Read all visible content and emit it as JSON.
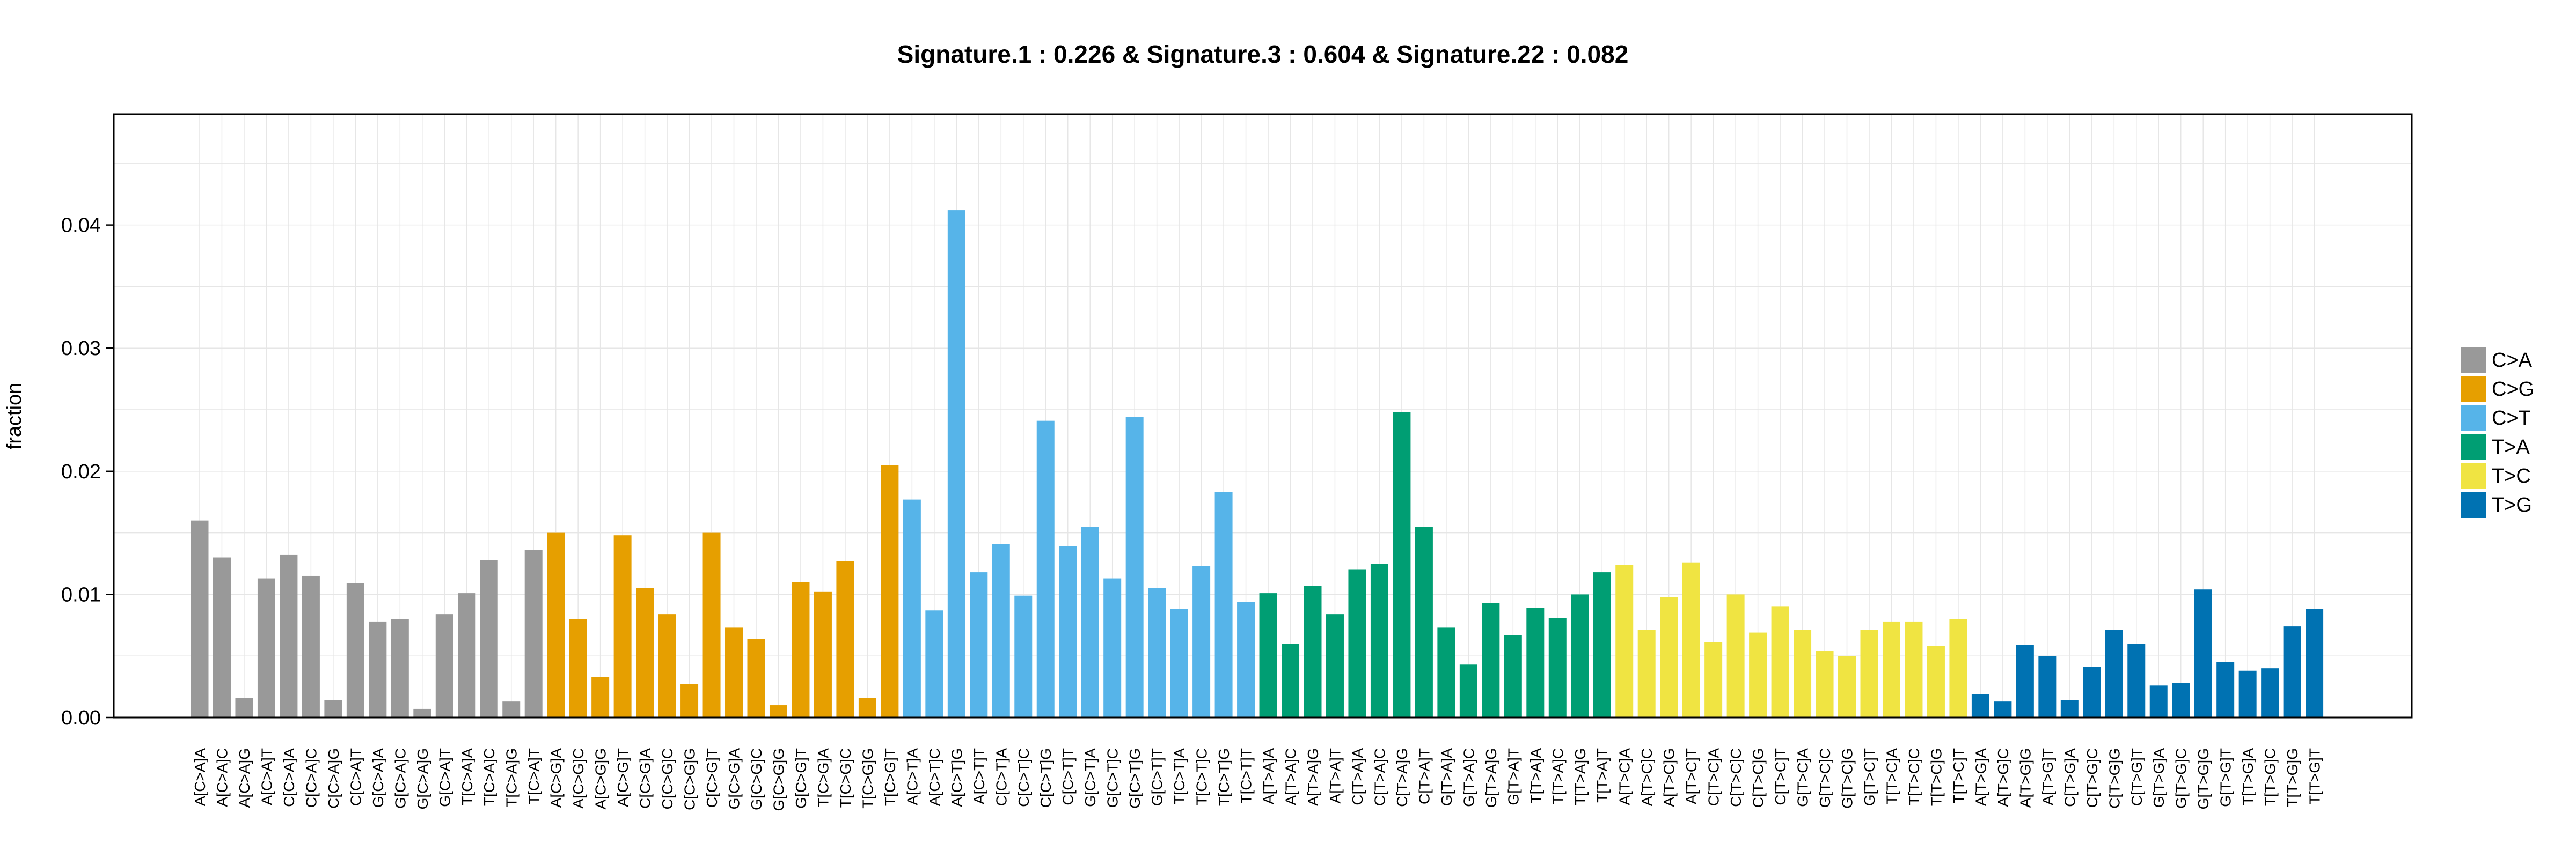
{
  "chart_data": {
    "type": "bar",
    "title": "Signature.1 : 0.226 & Signature.3 : 0.604 & Signature.22 : 0.082",
    "xlabel": "",
    "ylabel": "fraction",
    "ylim": [
      0,
      0.049
    ],
    "yticks": [
      "0.00",
      "0.01",
      "0.02",
      "0.03",
      "0.04"
    ],
    "grid": true,
    "legend_position": "right",
    "groups": [
      {
        "name": "C>A",
        "color": "#999999",
        "categories": [
          "A[C>A]A",
          "A[C>A]C",
          "A[C>A]G",
          "A[C>A]T",
          "C[C>A]A",
          "C[C>A]C",
          "C[C>A]G",
          "C[C>A]T",
          "G[C>A]A",
          "G[C>A]C",
          "G[C>A]G",
          "G[C>A]T",
          "T[C>A]A",
          "T[C>A]C",
          "T[C>A]G",
          "T[C>A]T"
        ],
        "values": [
          0.016,
          0.013,
          0.0016,
          0.0113,
          0.0132,
          0.0115,
          0.0014,
          0.0109,
          0.0078,
          0.008,
          0.0007,
          0.0084,
          0.0101,
          0.0128,
          0.0013,
          0.0136
        ]
      },
      {
        "name": "C>G",
        "color": "#E69F00",
        "categories": [
          "A[C>G]A",
          "A[C>G]C",
          "A[C>G]G",
          "A[C>G]T",
          "C[C>G]A",
          "C[C>G]C",
          "C[C>G]G",
          "C[C>G]T",
          "G[C>G]A",
          "G[C>G]C",
          "G[C>G]G",
          "G[C>G]T",
          "T[C>G]A",
          "T[C>G]C",
          "T[C>G]G",
          "T[C>G]T"
        ],
        "values": [
          0.015,
          0.008,
          0.0033,
          0.0148,
          0.0105,
          0.0084,
          0.0027,
          0.015,
          0.0073,
          0.0064,
          0.001,
          0.011,
          0.0102,
          0.0127,
          0.0016,
          0.0205
        ]
      },
      {
        "name": "C>T",
        "color": "#56B4E9",
        "categories": [
          "A[C>T]A",
          "A[C>T]C",
          "A[C>T]G",
          "A[C>T]T",
          "C[C>T]A",
          "C[C>T]C",
          "C[C>T]G",
          "C[C>T]T",
          "G[C>T]A",
          "G[C>T]C",
          "G[C>T]G",
          "G[C>T]T",
          "T[C>T]A",
          "T[C>T]C",
          "T[C>T]G",
          "T[C>T]T"
        ],
        "values": [
          0.0177,
          0.0087,
          0.0412,
          0.0118,
          0.0141,
          0.0099,
          0.0241,
          0.0139,
          0.0155,
          0.0113,
          0.0244,
          0.0105,
          0.0088,
          0.0123,
          0.0183,
          0.0094
        ]
      },
      {
        "name": "T>A",
        "color": "#009E73",
        "categories": [
          "A[T>A]A",
          "A[T>A]C",
          "A[T>A]G",
          "A[T>A]T",
          "C[T>A]A",
          "C[T>A]C",
          "C[T>A]G",
          "C[T>A]T",
          "G[T>A]A",
          "G[T>A]C",
          "G[T>A]G",
          "G[T>A]T",
          "T[T>A]A",
          "T[T>A]C",
          "T[T>A]G",
          "T[T>A]T"
        ],
        "values": [
          0.0101,
          0.006,
          0.0107,
          0.0084,
          0.012,
          0.0125,
          0.0248,
          0.0155,
          0.0073,
          0.0043,
          0.0093,
          0.0067,
          0.0089,
          0.0081,
          0.01,
          0.0118
        ]
      },
      {
        "name": "T>C",
        "color": "#F0E442",
        "categories": [
          "A[T>C]A",
          "A[T>C]C",
          "A[T>C]G",
          "A[T>C]T",
          "C[T>C]A",
          "C[T>C]C",
          "C[T>C]G",
          "C[T>C]T",
          "G[T>C]A",
          "G[T>C]C",
          "G[T>C]G",
          "G[T>C]T",
          "T[T>C]A",
          "T[T>C]C",
          "T[T>C]G",
          "T[T>C]T"
        ],
        "values": [
          0.0124,
          0.0071,
          0.0098,
          0.0126,
          0.0061,
          0.01,
          0.0069,
          0.009,
          0.0071,
          0.0054,
          0.005,
          0.0071,
          0.0078,
          0.0078,
          0.0058,
          0.008
        ]
      },
      {
        "name": "T>G",
        "color": "#0072B2",
        "categories": [
          "A[T>G]A",
          "A[T>G]C",
          "A[T>G]G",
          "A[T>G]T",
          "C[T>G]A",
          "C[T>G]C",
          "C[T>G]G",
          "C[T>G]T",
          "G[T>G]A",
          "G[T>G]C",
          "G[T>G]G",
          "G[T>G]T",
          "T[T>G]A",
          "T[T>G]C",
          "T[T>G]G",
          "T[T>G]T"
        ],
        "values": [
          0.0019,
          0.0013,
          0.0059,
          0.005,
          0.0014,
          0.0041,
          0.0071,
          0.006,
          0.0026,
          0.0028,
          0.0104,
          0.0045,
          0.0038,
          0.004,
          0.0074,
          0.0088
        ]
      }
    ]
  }
}
